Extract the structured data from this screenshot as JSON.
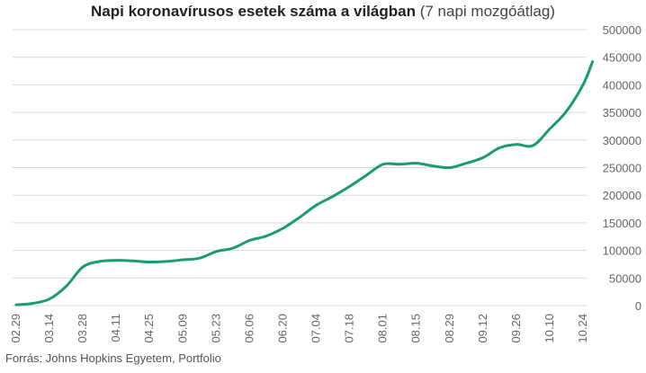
{
  "title": {
    "main": "Napi koronavírusos esetek száma a világban",
    "sub": "(7 napi mozgóátlag)"
  },
  "source": "Forrás: Johns Hopkins Egyetem, Portfolio",
  "colors": {
    "line": "#1a9b73",
    "grid": "#d9d9d9",
    "tick": "#666666"
  },
  "chart_data": {
    "type": "line",
    "title": "Napi koronavírusos esetek száma a világban (7 napi mozgóátlag)",
    "xlabel": "",
    "ylabel": "",
    "x_ticks": [
      "02.29",
      "03.14",
      "03.28",
      "04.11",
      "04.25",
      "05.09",
      "05.23",
      "06.06",
      "06.20",
      "07.04",
      "07.18",
      "08.01",
      "08.15",
      "08.29",
      "09.12",
      "09.26",
      "10.10",
      "10.24"
    ],
    "y_ticks": [
      0,
      50000,
      100000,
      150000,
      200000,
      250000,
      300000,
      350000,
      400000,
      450000,
      500000
    ],
    "ylim": [
      0,
      500000
    ],
    "y_axis_position": "right",
    "grid": true,
    "legend": "none",
    "series": [
      {
        "x": [
          "02.29",
          "03.07",
          "03.14",
          "03.21",
          "03.28",
          "04.04",
          "04.11",
          "04.18",
          "04.25",
          "05.02",
          "05.09",
          "05.16",
          "05.23",
          "05.30",
          "06.06",
          "06.13",
          "06.20",
          "06.27",
          "07.04",
          "07.11",
          "07.18",
          "07.25",
          "08.01",
          "08.08",
          "08.15",
          "08.22",
          "08.29",
          "09.05",
          "09.12",
          "09.19",
          "09.26",
          "10.03",
          "10.10",
          "10.17",
          "10.24",
          "10.28"
        ],
        "values": [
          1500,
          4000,
          12000,
          35000,
          70000,
          80000,
          82000,
          81000,
          79000,
          80000,
          83000,
          86000,
          98000,
          104000,
          118000,
          126000,
          140000,
          160000,
          182000,
          198000,
          216000,
          236000,
          256000,
          256000,
          258000,
          253000,
          250000,
          258000,
          268000,
          286000,
          292000,
          290000,
          320000,
          352000,
          400000,
          442000
        ]
      }
    ]
  }
}
